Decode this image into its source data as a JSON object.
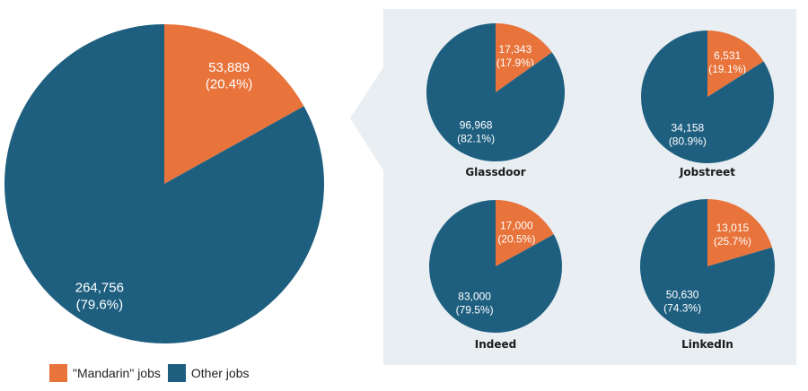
{
  "chart_data": [
    {
      "type": "pie",
      "title": "",
      "categories": [
        "\"Mandarin\" jobs",
        "Other jobs"
      ],
      "values": [
        53889,
        264756
      ],
      "percent_labels": [
        "(20.4%)",
        "(79.6%)"
      ],
      "value_labels": [
        "53,889",
        "264,756"
      ]
    },
    {
      "type": "pie",
      "title": "Glassdoor",
      "categories": [
        "\"Mandarin\" jobs",
        "Other jobs"
      ],
      "values": [
        17343,
        96968
      ],
      "percent_labels": [
        "(17.9%)",
        "(82.1%)"
      ],
      "value_labels": [
        "17,343",
        "96,968"
      ]
    },
    {
      "type": "pie",
      "title": "Jobstreet",
      "categories": [
        "\"Mandarin\" jobs",
        "Other jobs"
      ],
      "values": [
        6531,
        34158
      ],
      "percent_labels": [
        "(19.1%)",
        "(80.9%)"
      ],
      "value_labels": [
        "6,531",
        "34,158"
      ]
    },
    {
      "type": "pie",
      "title": "Indeed",
      "categories": [
        "\"Mandarin\" jobs",
        "Other jobs"
      ],
      "values": [
        17000,
        83000
      ],
      "percent_labels": [
        "(20.5%)",
        "(79.5%)"
      ],
      "value_labels": [
        "17,000",
        "83,000"
      ]
    },
    {
      "type": "pie",
      "title": "LinkedIn",
      "categories": [
        "\"Mandarin\" jobs",
        "Other jobs"
      ],
      "values": [
        13015,
        50630
      ],
      "percent_labels": [
        "(25.7%)",
        "(74.3%)"
      ],
      "value_labels": [
        "13,015",
        "50,630"
      ]
    }
  ],
  "legend": {
    "placement": "bottom-left",
    "items": [
      {
        "label": "\"Mandarin\" jobs",
        "color": "#e8743b"
      },
      {
        "label": "Other jobs",
        "color": "#1e5f80"
      }
    ]
  },
  "colors": {
    "mandarin": "#e8743b",
    "other": "#1e5f80",
    "panel": "#e8eef2"
  }
}
